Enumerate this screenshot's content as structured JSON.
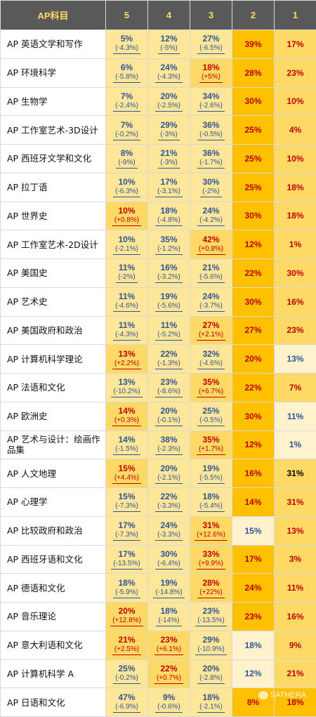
{
  "headers": [
    "AP科目",
    "5",
    "4",
    "3",
    "2",
    "1"
  ],
  "rows": [
    {
      "subject": "AP 英语文学和写作",
      "cells": [
        {
          "pct": "5%",
          "chg": "(-4.3%)",
          "color": "blue",
          "bg": "light"
        },
        {
          "pct": "12%",
          "chg": "(-5%)",
          "color": "blue",
          "bg": "light"
        },
        {
          "pct": "27%",
          "chg": "(-6.5%)",
          "color": "blue",
          "bg": "light"
        },
        {
          "pct": "39%",
          "color": "red",
          "bg": "gold"
        },
        {
          "pct": "17%",
          "color": "red",
          "bg": "mid"
        }
      ]
    },
    {
      "subject": "AP 环境科学",
      "cells": [
        {
          "pct": "6%",
          "chg": "(-5.8%)",
          "color": "blue",
          "bg": "light"
        },
        {
          "pct": "24%",
          "chg": "(-4.3%)",
          "color": "blue",
          "bg": "light"
        },
        {
          "pct": "18%",
          "chg": "(+5%)",
          "color": "red",
          "bg": "mid"
        },
        {
          "pct": "28%",
          "color": "red",
          "bg": "gold"
        },
        {
          "pct": "23%",
          "color": "red",
          "bg": "mid"
        }
      ]
    },
    {
      "subject": "AP 生物学",
      "cells": [
        {
          "pct": "7%",
          "chg": "(-2.4%)",
          "color": "blue",
          "bg": "light"
        },
        {
          "pct": "20%",
          "chg": "(-2.5%)",
          "color": "blue",
          "bg": "light"
        },
        {
          "pct": "34%",
          "chg": "(-2.6%)",
          "color": "blue",
          "bg": "light"
        },
        {
          "pct": "30%",
          "color": "red",
          "bg": "gold"
        },
        {
          "pct": "10%",
          "color": "red",
          "bg": "mid"
        }
      ]
    },
    {
      "subject": "AP 工作室艺术-3D设计",
      "cells": [
        {
          "pct": "7%",
          "chg": "(-0.2%)",
          "color": "blue",
          "bg": "light"
        },
        {
          "pct": "29%",
          "chg": "(-3%)",
          "color": "blue",
          "bg": "light"
        },
        {
          "pct": "36%",
          "chg": "(-0.5%)",
          "color": "blue",
          "bg": "light"
        },
        {
          "pct": "25%",
          "color": "red",
          "bg": "gold"
        },
        {
          "pct": "4%",
          "color": "red",
          "bg": "mid"
        }
      ]
    },
    {
      "subject": "AP 西班牙文学和文化",
      "cells": [
        {
          "pct": "8%",
          "chg": "(-9%)",
          "color": "blue",
          "bg": "light"
        },
        {
          "pct": "21%",
          "chg": "(-3%)",
          "color": "blue",
          "bg": "light"
        },
        {
          "pct": "36%",
          "chg": "(-1.7%)",
          "color": "blue",
          "bg": "light"
        },
        {
          "pct": "25%",
          "color": "red",
          "bg": "gold"
        },
        {
          "pct": "10%",
          "color": "red",
          "bg": "mid"
        }
      ]
    },
    {
      "subject": "AP 拉丁语",
      "cells": [
        {
          "pct": "10%",
          "chg": "(-6.3%)",
          "color": "blue",
          "bg": "light"
        },
        {
          "pct": "17%",
          "chg": "(-3.1%)",
          "color": "blue",
          "bg": "light"
        },
        {
          "pct": "30%",
          "chg": "(-2%)",
          "color": "blue",
          "bg": "light"
        },
        {
          "pct": "25%",
          "color": "red",
          "bg": "gold"
        },
        {
          "pct": "18%",
          "color": "red",
          "bg": "mid"
        }
      ]
    },
    {
      "subject": "AP 世界史",
      "cells": [
        {
          "pct": "10%",
          "chg": "(+0.8%)",
          "color": "red",
          "bg": "mid"
        },
        {
          "pct": "18%",
          "chg": "(-4.8%)",
          "color": "blue",
          "bg": "light"
        },
        {
          "pct": "24%",
          "chg": "(-4.2%)",
          "color": "blue",
          "bg": "light"
        },
        {
          "pct": "30%",
          "color": "red",
          "bg": "gold"
        },
        {
          "pct": "18%",
          "color": "red",
          "bg": "mid"
        }
      ]
    },
    {
      "subject": "AP 工作室艺术-2D设计",
      "cells": [
        {
          "pct": "10%",
          "chg": "(-2.1%)",
          "color": "blue",
          "bg": "light"
        },
        {
          "pct": "35%",
          "chg": "(-1.2%)",
          "color": "blue",
          "bg": "light"
        },
        {
          "pct": "42%",
          "chg": "(+0.8%)",
          "color": "red",
          "bg": "mid"
        },
        {
          "pct": "12%",
          "color": "red",
          "bg": "gold"
        },
        {
          "pct": "1%",
          "color": "red",
          "bg": "mid"
        }
      ]
    },
    {
      "subject": "AP 美国史",
      "cells": [
        {
          "pct": "11%",
          "chg": "(-2%)",
          "color": "blue",
          "bg": "light"
        },
        {
          "pct": "16%",
          "chg": "(-3.2%)",
          "color": "blue",
          "bg": "light"
        },
        {
          "pct": "21%",
          "chg": "(-5.6%)",
          "color": "blue",
          "bg": "light"
        },
        {
          "pct": "22%",
          "color": "red",
          "bg": "gold"
        },
        {
          "pct": "30%",
          "color": "red",
          "bg": "mid"
        }
      ]
    },
    {
      "subject": "AP 艺术史",
      "cells": [
        {
          "pct": "11%",
          "chg": "(-4.6%)",
          "color": "blue",
          "bg": "light"
        },
        {
          "pct": "19%",
          "chg": "(-5.6%)",
          "color": "blue",
          "bg": "light"
        },
        {
          "pct": "24%",
          "chg": "(-3.7%)",
          "color": "blue",
          "bg": "light"
        },
        {
          "pct": "30%",
          "color": "red",
          "bg": "gold"
        },
        {
          "pct": "16%",
          "color": "red",
          "bg": "mid"
        }
      ]
    },
    {
      "subject": "AP 美国政府和政治",
      "cells": [
        {
          "pct": "11%",
          "chg": "(-4.3%)",
          "color": "blue",
          "bg": "light"
        },
        {
          "pct": "11%",
          "chg": "(-5.2%)",
          "color": "blue",
          "bg": "light"
        },
        {
          "pct": "27%",
          "chg": "(+2.1%)",
          "color": "red",
          "bg": "mid"
        },
        {
          "pct": "27%",
          "color": "red",
          "bg": "gold"
        },
        {
          "pct": "23%",
          "color": "red",
          "bg": "mid"
        }
      ]
    },
    {
      "subject": "AP 计算机科学理论",
      "cells": [
        {
          "pct": "13%",
          "chg": "(+2.2%)",
          "color": "red",
          "bg": "mid"
        },
        {
          "pct": "22%",
          "chg": "(-1.3%)",
          "color": "blue",
          "bg": "light"
        },
        {
          "pct": "32%",
          "chg": "(-4.6%)",
          "color": "blue",
          "bg": "light"
        },
        {
          "pct": "20%",
          "color": "red",
          "bg": "gold"
        },
        {
          "pct": "13%",
          "color": "blue",
          "bg": "pale"
        }
      ]
    },
    {
      "subject": "AP 法语和文化",
      "cells": [
        {
          "pct": "13%",
          "chg": "(-10.2%)",
          "color": "blue",
          "bg": "light"
        },
        {
          "pct": "23%",
          "chg": "(-8.6%)",
          "color": "blue",
          "bg": "light"
        },
        {
          "pct": "35%",
          "chg": "(+6.7%)",
          "color": "red",
          "bg": "mid"
        },
        {
          "pct": "22%",
          "color": "red",
          "bg": "gold"
        },
        {
          "pct": "7%",
          "color": "red",
          "bg": "mid"
        }
      ]
    },
    {
      "subject": "AP 欧洲史",
      "cells": [
        {
          "pct": "14%",
          "chg": "(+0.3%)",
          "color": "red",
          "bg": "mid"
        },
        {
          "pct": "20%",
          "chg": "(-0.1%)",
          "color": "blue",
          "bg": "light"
        },
        {
          "pct": "25%",
          "chg": "(-0.5%)",
          "color": "blue",
          "bg": "light"
        },
        {
          "pct": "30%",
          "color": "red",
          "bg": "gold"
        },
        {
          "pct": "11%",
          "color": "blue",
          "bg": "pale"
        }
      ]
    },
    {
      "subject": "AP 艺术与设计：绘画作品集",
      "cells": [
        {
          "pct": "14%",
          "chg": "(-1.5%)",
          "color": "blue",
          "bg": "light"
        },
        {
          "pct": "38%",
          "chg": "(-2.3%)",
          "color": "blue",
          "bg": "light"
        },
        {
          "pct": "35%",
          "chg": "(+1.7%)",
          "color": "red",
          "bg": "mid"
        },
        {
          "pct": "12%",
          "color": "red",
          "bg": "gold"
        },
        {
          "pct": "1%",
          "color": "blue",
          "bg": "pale"
        }
      ]
    },
    {
      "subject": "AP 人文地理",
      "cells": [
        {
          "pct": "15%",
          "chg": "(+4.4%)",
          "color": "red",
          "bg": "mid"
        },
        {
          "pct": "20%",
          "chg": "(-2.1%)",
          "color": "blue",
          "bg": "light"
        },
        {
          "pct": "19%",
          "chg": "(-5.5%)",
          "color": "blue",
          "bg": "light"
        },
        {
          "pct": "16%",
          "color": "red",
          "bg": "gold"
        },
        {
          "pct": "31%",
          "color": "black",
          "bg": "mid"
        }
      ]
    },
    {
      "subject": "AP 心理学",
      "cells": [
        {
          "pct": "15%",
          "chg": "(-7.3%)",
          "color": "blue",
          "bg": "light"
        },
        {
          "pct": "22%",
          "chg": "(-3.3%)",
          "color": "blue",
          "bg": "light"
        },
        {
          "pct": "18%",
          "chg": "(-5.4%)",
          "color": "blue",
          "bg": "light"
        },
        {
          "pct": "14%",
          "color": "red",
          "bg": "gold"
        },
        {
          "pct": "31%",
          "color": "red",
          "bg": "mid"
        }
      ]
    },
    {
      "subject": "AP 比较政府和政治",
      "cells": [
        {
          "pct": "17%",
          "chg": "(-7.3%)",
          "color": "blue",
          "bg": "light"
        },
        {
          "pct": "24%",
          "chg": "(-3.3%)",
          "color": "blue",
          "bg": "light"
        },
        {
          "pct": "31%",
          "chg": "(+12.6%)",
          "color": "red",
          "bg": "mid"
        },
        {
          "pct": "15%",
          "color": "blue",
          "bg": "pale"
        },
        {
          "pct": "13%",
          "color": "red",
          "bg": "mid"
        }
      ]
    },
    {
      "subject": "AP 西班牙语和文化",
      "cells": [
        {
          "pct": "17%",
          "chg": "(-13.5%)",
          "color": "blue",
          "bg": "light"
        },
        {
          "pct": "30%",
          "chg": "(-6.4%)",
          "color": "blue",
          "bg": "light"
        },
        {
          "pct": "33%",
          "chg": "(+9.9%)",
          "color": "red",
          "bg": "mid"
        },
        {
          "pct": "17%",
          "color": "red",
          "bg": "gold"
        },
        {
          "pct": "3%",
          "color": "red",
          "bg": "mid"
        }
      ]
    },
    {
      "subject": "AP 德语和文化",
      "cells": [
        {
          "pct": "18%",
          "chg": "(-5.9%)",
          "color": "blue",
          "bg": "light"
        },
        {
          "pct": "19%",
          "chg": "(-14.8%)",
          "color": "blue",
          "bg": "light"
        },
        {
          "pct": "28%",
          "chg": "(+22%)",
          "color": "red",
          "bg": "mid"
        },
        {
          "pct": "24%",
          "color": "red",
          "bg": "gold"
        },
        {
          "pct": "11%",
          "color": "red",
          "bg": "mid"
        }
      ]
    },
    {
      "subject": "AP 音乐理论",
      "cells": [
        {
          "pct": "20%",
          "chg": "(+12.8%)",
          "color": "red",
          "bg": "mid"
        },
        {
          "pct": "18%",
          "chg": "(-14%)",
          "color": "blue",
          "bg": "light"
        },
        {
          "pct": "23%",
          "chg": "(-13.5%)",
          "color": "blue",
          "bg": "light"
        },
        {
          "pct": "23%",
          "color": "red",
          "bg": "gold"
        },
        {
          "pct": "16%",
          "color": "red",
          "bg": "mid"
        }
      ]
    },
    {
      "subject": "AP 意大利语和文化",
      "cells": [
        {
          "pct": "21%",
          "chg": "(+2.5%)",
          "color": "red",
          "bg": "mid"
        },
        {
          "pct": "23%",
          "chg": "(+6.1%)",
          "color": "red",
          "bg": "mid"
        },
        {
          "pct": "29%",
          "chg": "(-10.9%)",
          "color": "blue",
          "bg": "light"
        },
        {
          "pct": "18%",
          "color": "blue",
          "bg": "pale"
        },
        {
          "pct": "9%",
          "color": "red",
          "bg": "mid"
        }
      ]
    },
    {
      "subject": "AP 计算机科学 A",
      "cells": [
        {
          "pct": "25%",
          "chg": "(-0.2%)",
          "color": "blue",
          "bg": "light"
        },
        {
          "pct": "22%",
          "chg": "(+0.7%)",
          "color": "red",
          "bg": "mid"
        },
        {
          "pct": "20%",
          "chg": "(-2.8%)",
          "color": "blue",
          "bg": "light"
        },
        {
          "pct": "12%",
          "color": "blue",
          "bg": "pale"
        },
        {
          "pct": "21%",
          "color": "red",
          "bg": "mid"
        }
      ]
    },
    {
      "subject": "AP 日语和文化",
      "cells": [
        {
          "pct": "47%",
          "chg": "(-6.9%)",
          "color": "blue",
          "bg": "light"
        },
        {
          "pct": "9%",
          "chg": "(-0.6%)",
          "color": "blue",
          "bg": "light"
        },
        {
          "pct": "18%",
          "chg": "(-2.1%)",
          "color": "blue",
          "bg": "light"
        },
        {
          "pct": "8%",
          "color": "red",
          "bg": "gold"
        },
        {
          "pct": "18%",
          "color": "red",
          "bg": "gold"
        }
      ]
    }
  ],
  "watermark": "SATHERA"
}
